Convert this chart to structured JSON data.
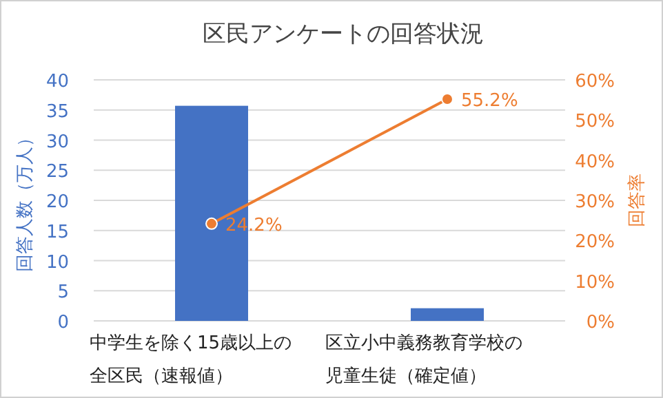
{
  "chart_data": {
    "type": "bar",
    "title": "区民アンケートの回答状況",
    "categories": [
      "中学生を除く15歳以上の全区民（速報値）",
      "区立小中義務教育学校の児童生徒（確定値）"
    ],
    "series": [
      {
        "color": "#4472c4",
        "values": [
          35.7,
          2.1
        ]
      },
      {
        "type": "line",
        "axis": "y2",
        "color": "#ed7d31",
        "marker": "circle",
        "values": [
          24.2,
          55.2
        ],
        "value_labels": [
          "24.2%",
          "55.2%"
        ]
      }
    ],
    "ylabel": "回答人数（万人）",
    "y2label": "回答率",
    "ylim": [
      0,
      40
    ],
    "yticks": [
      0,
      5,
      10,
      15,
      20,
      25,
      30,
      35,
      40
    ],
    "y2lim": [
      0,
      60
    ],
    "y2ticks": [
      {
        "value": 0,
        "label": "0%"
      },
      {
        "value": 10,
        "label": "10%"
      },
      {
        "value": 20,
        "label": "20%"
      },
      {
        "value": 30,
        "label": "30%"
      },
      {
        "value": 40,
        "label": "40%"
      },
      {
        "value": 50,
        "label": "50%"
      },
      {
        "value": 60,
        "label": "60%"
      }
    ],
    "grid": "y"
  }
}
